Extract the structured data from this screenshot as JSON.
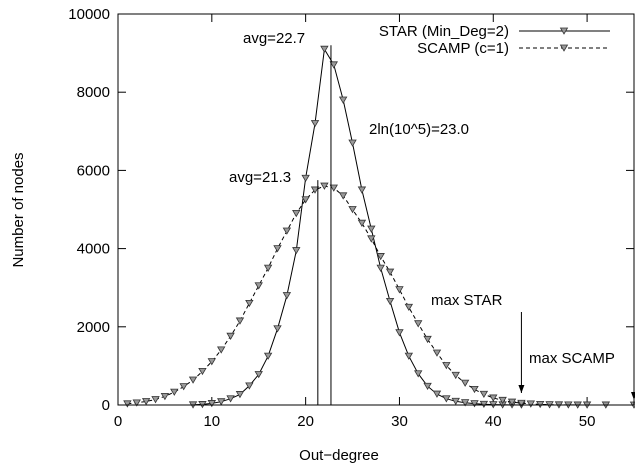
{
  "chart_data": {
    "type": "line",
    "xlabel": "Out−degree",
    "ylabel": "Number of nodes",
    "xlim": [
      0,
      55
    ],
    "ylim": [
      0,
      10000
    ],
    "xticks": [
      0,
      10,
      20,
      30,
      40,
      50
    ],
    "yticks": [
      0,
      2000,
      4000,
      6000,
      8000,
      10000
    ],
    "grid": false,
    "legend_position": "top-right",
    "series": [
      {
        "name": "STAR (Min_Deg=2)",
        "line_style": "solid",
        "x": [
          8,
          9,
          10,
          11,
          12,
          13,
          14,
          15,
          16,
          17,
          18,
          19,
          20,
          21,
          22,
          23,
          24,
          25,
          26,
          27,
          28,
          29,
          30,
          31,
          32,
          33,
          34,
          35,
          36,
          37,
          38,
          39,
          40,
          41,
          42,
          43
        ],
        "y": [
          5,
          15,
          40,
          85,
          160,
          270,
          490,
          780,
          1250,
          1950,
          2800,
          3950,
          5800,
          7200,
          9100,
          8700,
          7800,
          6700,
          5500,
          4500,
          3500,
          2650,
          1850,
          1250,
          800,
          480,
          280,
          160,
          95,
          60,
          35,
          20,
          10,
          5,
          3,
          1
        ]
      },
      {
        "name": "SCAMP (c=1)",
        "line_style": "dashed",
        "x": [
          1,
          2,
          3,
          4,
          5,
          6,
          7,
          8,
          9,
          10,
          11,
          12,
          13,
          14,
          15,
          16,
          17,
          18,
          19,
          20,
          21,
          22,
          23,
          24,
          25,
          26,
          27,
          28,
          29,
          30,
          31,
          32,
          33,
          34,
          35,
          36,
          37,
          38,
          39,
          40,
          41,
          42,
          43,
          44,
          45,
          46,
          47,
          48,
          49,
          50,
          52,
          55
        ],
        "y": [
          30,
          55,
          90,
          140,
          220,
          330,
          470,
          640,
          860,
          1110,
          1410,
          1760,
          2150,
          2600,
          3050,
          3500,
          4000,
          4450,
          4900,
          5250,
          5500,
          5600,
          5550,
          5350,
          5000,
          4650,
          4250,
          3800,
          3400,
          2950,
          2500,
          2080,
          1680,
          1330,
          1010,
          760,
          560,
          400,
          275,
          180,
          120,
          75,
          45,
          28,
          16,
          9,
          5,
          3,
          2,
          1,
          1,
          0
        ]
      }
    ],
    "markers": [
      {
        "x": 21.3,
        "height": 5750
      },
      {
        "x": 22.7,
        "height": 9200
      }
    ],
    "annotations": [
      {
        "text": "avg=22.7"
      },
      {
        "text": "avg=21.3"
      },
      {
        "text": "2ln(10^5)=23.0"
      },
      {
        "text": "max STAR",
        "x": 43
      },
      {
        "text": "max SCAMP",
        "x": 55
      }
    ]
  }
}
